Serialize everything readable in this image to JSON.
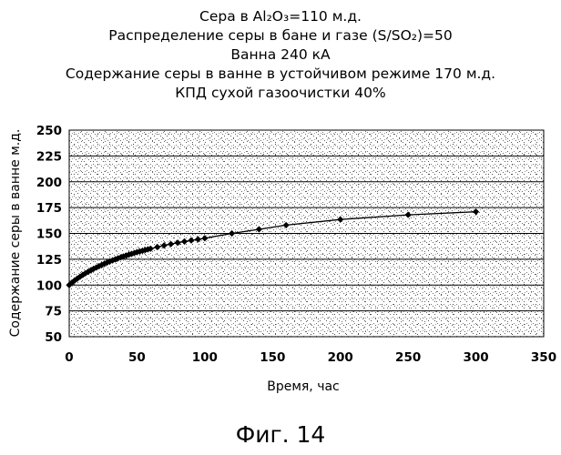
{
  "chart_data": {
    "type": "line",
    "title_lines": [
      "Сера в Al₂O₃=110 м.д.",
      "Распределение серы в бане и газе (S/SO₂)=50",
      "Ванна 240 кА",
      "Содержание серы в ванне в устойчивом режиме 170 м.д.",
      "КПД сухой газоочистки 40%"
    ],
    "xlabel": "Время, час",
    "ylabel": "Содержание серы в ванне м.д.",
    "xlim": [
      0,
      350
    ],
    "ylim": [
      50,
      250
    ],
    "xticks": [
      0,
      50,
      100,
      150,
      200,
      250,
      300,
      350
    ],
    "yticks": [
      50,
      75,
      100,
      125,
      150,
      175,
      200,
      225,
      250
    ],
    "grid": "horizontal",
    "plot_background": "stippled",
    "series": [
      {
        "marker": "diamond",
        "color": "#000000",
        "x": [
          0,
          2,
          4,
          6,
          8,
          10,
          12,
          14,
          16,
          18,
          20,
          22,
          24,
          26,
          28,
          30,
          32,
          34,
          36,
          38,
          40,
          42,
          44,
          46,
          48,
          50,
          52,
          54,
          56,
          58,
          60,
          65,
          70,
          75,
          80,
          85,
          90,
          95,
          100,
          120,
          140,
          160,
          200,
          250,
          300
        ],
        "y": [
          100,
          102.3,
          104.4,
          106.3,
          108.1,
          109.8,
          111.4,
          112.9,
          114.3,
          115.7,
          117,
          118.3,
          119.5,
          120.7,
          121.8,
          122.9,
          123.9,
          124.9,
          125.9,
          126.8,
          127.7,
          128.6,
          129.4,
          130.2,
          131,
          131.8,
          132.5,
          133.2,
          133.9,
          134.6,
          135.2,
          136.8,
          138.3,
          139.7,
          141,
          142.2,
          143.3,
          144.3,
          145.3,
          150,
          154,
          158,
          163.5,
          168,
          171
        ]
      }
    ]
  },
  "caption": "Фиг. 14"
}
